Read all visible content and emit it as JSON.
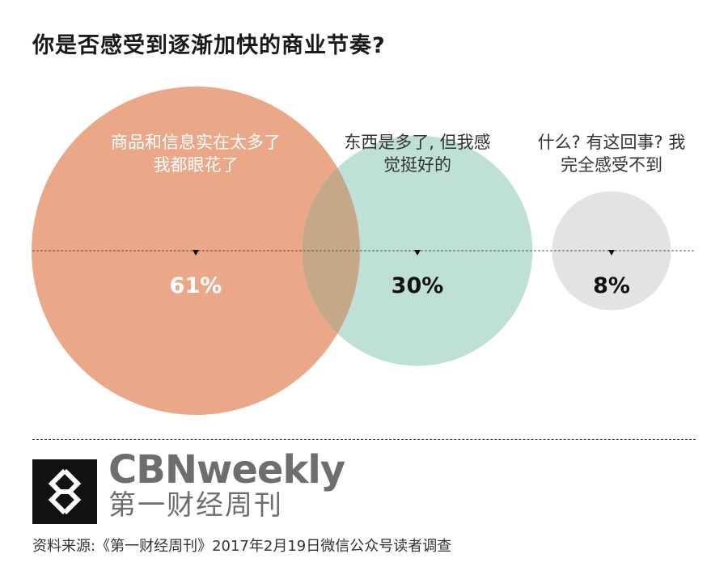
{
  "title": "你是否感受到逐渐加快的商业节奏?",
  "chart_data": {
    "type": "bubble",
    "title": "你是否感受到逐渐加快的商业节奏?",
    "series": [
      {
        "label_lines": [
          "商品和信息实在太多了",
          "我都眼花了"
        ],
        "value": 61,
        "value_label": "61%",
        "color": "#eba888"
      },
      {
        "label_lines": [
          "东西是多了, 但我感",
          "觉挺好的"
        ],
        "value": 30,
        "value_label": "30%",
        "color": "#bfe0d6"
      },
      {
        "label_lines": [
          "什么? 有这回事? 我",
          "完全感受不到"
        ],
        "value": 8,
        "value_label": "8%",
        "color": "#e3e3e3"
      }
    ],
    "overlap_color": "#c5a888"
  },
  "branding": {
    "name_en": "CBNweekly",
    "name_cn": "第一财经周刊"
  },
  "source": "资料来源:《第一财经周刊》2017年2月19日微信公众号读者调查"
}
